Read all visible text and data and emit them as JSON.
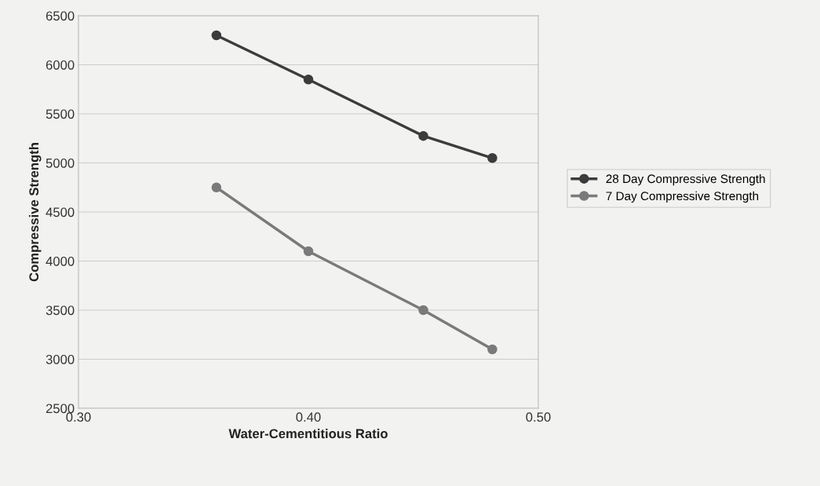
{
  "chart_data": {
    "type": "line",
    "xlabel": "Water-Cementitious Ratio",
    "ylabel": "Compressive Strength",
    "x": [
      0.36,
      0.4,
      0.45,
      0.48
    ],
    "series": [
      {
        "name": "28 Day Compressive Strength",
        "color": "#3c3c3c",
        "values": [
          6300,
          5850,
          5275,
          5050
        ]
      },
      {
        "name": "7 Day Compressive Strength",
        "color": "#7a7a7a",
        "values": [
          4750,
          4100,
          3500,
          3100
        ]
      }
    ],
    "xlim": [
      0.3,
      0.5
    ],
    "xticks": [
      {
        "value": 0.3,
        "label": "0.30"
      },
      {
        "value": 0.4,
        "label": "0.40"
      },
      {
        "value": 0.5,
        "label": "0.50"
      }
    ],
    "ylim": [
      2500,
      6500
    ],
    "yticks": [
      2500,
      3000,
      3500,
      4000,
      4500,
      5000,
      5500,
      6000,
      6500
    ],
    "grid": "y",
    "legend": "right",
    "marker": "circle",
    "line_style": "solid"
  }
}
